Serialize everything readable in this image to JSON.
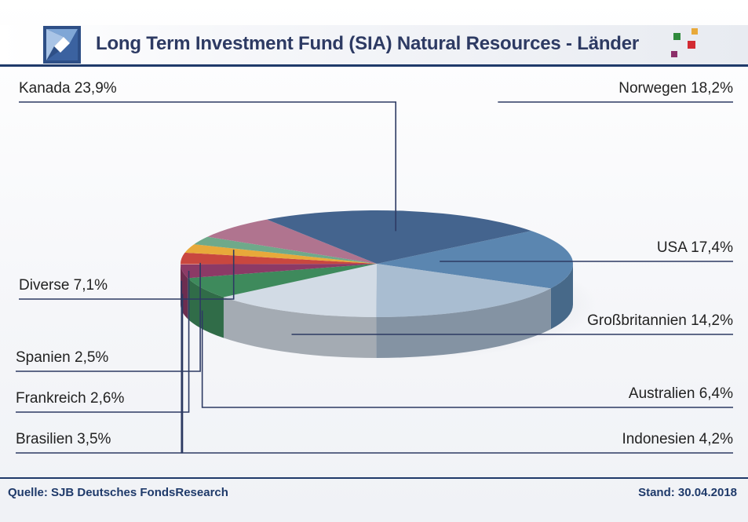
{
  "header": {
    "title": "Long Term Investment Fund (SIA) Natural Resources - Länder"
  },
  "footer": {
    "source": "Quelle: SJB Deutsches FondsResearch",
    "date": "Stand: 30.04.2018"
  },
  "chart_data": {
    "type": "pie",
    "categories": [
      "Norwegen",
      "USA",
      "Großbritannien",
      "Australien",
      "Indonesien",
      "Brasilien",
      "Frankreich",
      "Spanien",
      "Diverse",
      "Kanada"
    ],
    "values": [
      18.2,
      17.4,
      14.2,
      6.4,
      4.2,
      3.5,
      2.6,
      2.5,
      7.1,
      23.9
    ],
    "labels": [
      "Norwegen 18,2%",
      "USA 17,4%",
      "Großbritannien 14,2%",
      "Australien 6,4%",
      "Indonesien 4,2%",
      "Brasilien 3,5%",
      "Frankreich 2,6%",
      "Spanien 2,5%",
      "Diverse 7,1%",
      "Kanada 23,9%"
    ],
    "colors": [
      "#5b86b0",
      "#a9bdd1",
      "#d2dbe5",
      "#3e8a5c",
      "#8c3a66",
      "#c9473f",
      "#e8a93a",
      "#6fa98a",
      "#b0748f",
      "#44648e"
    ],
    "legend": "none"
  }
}
